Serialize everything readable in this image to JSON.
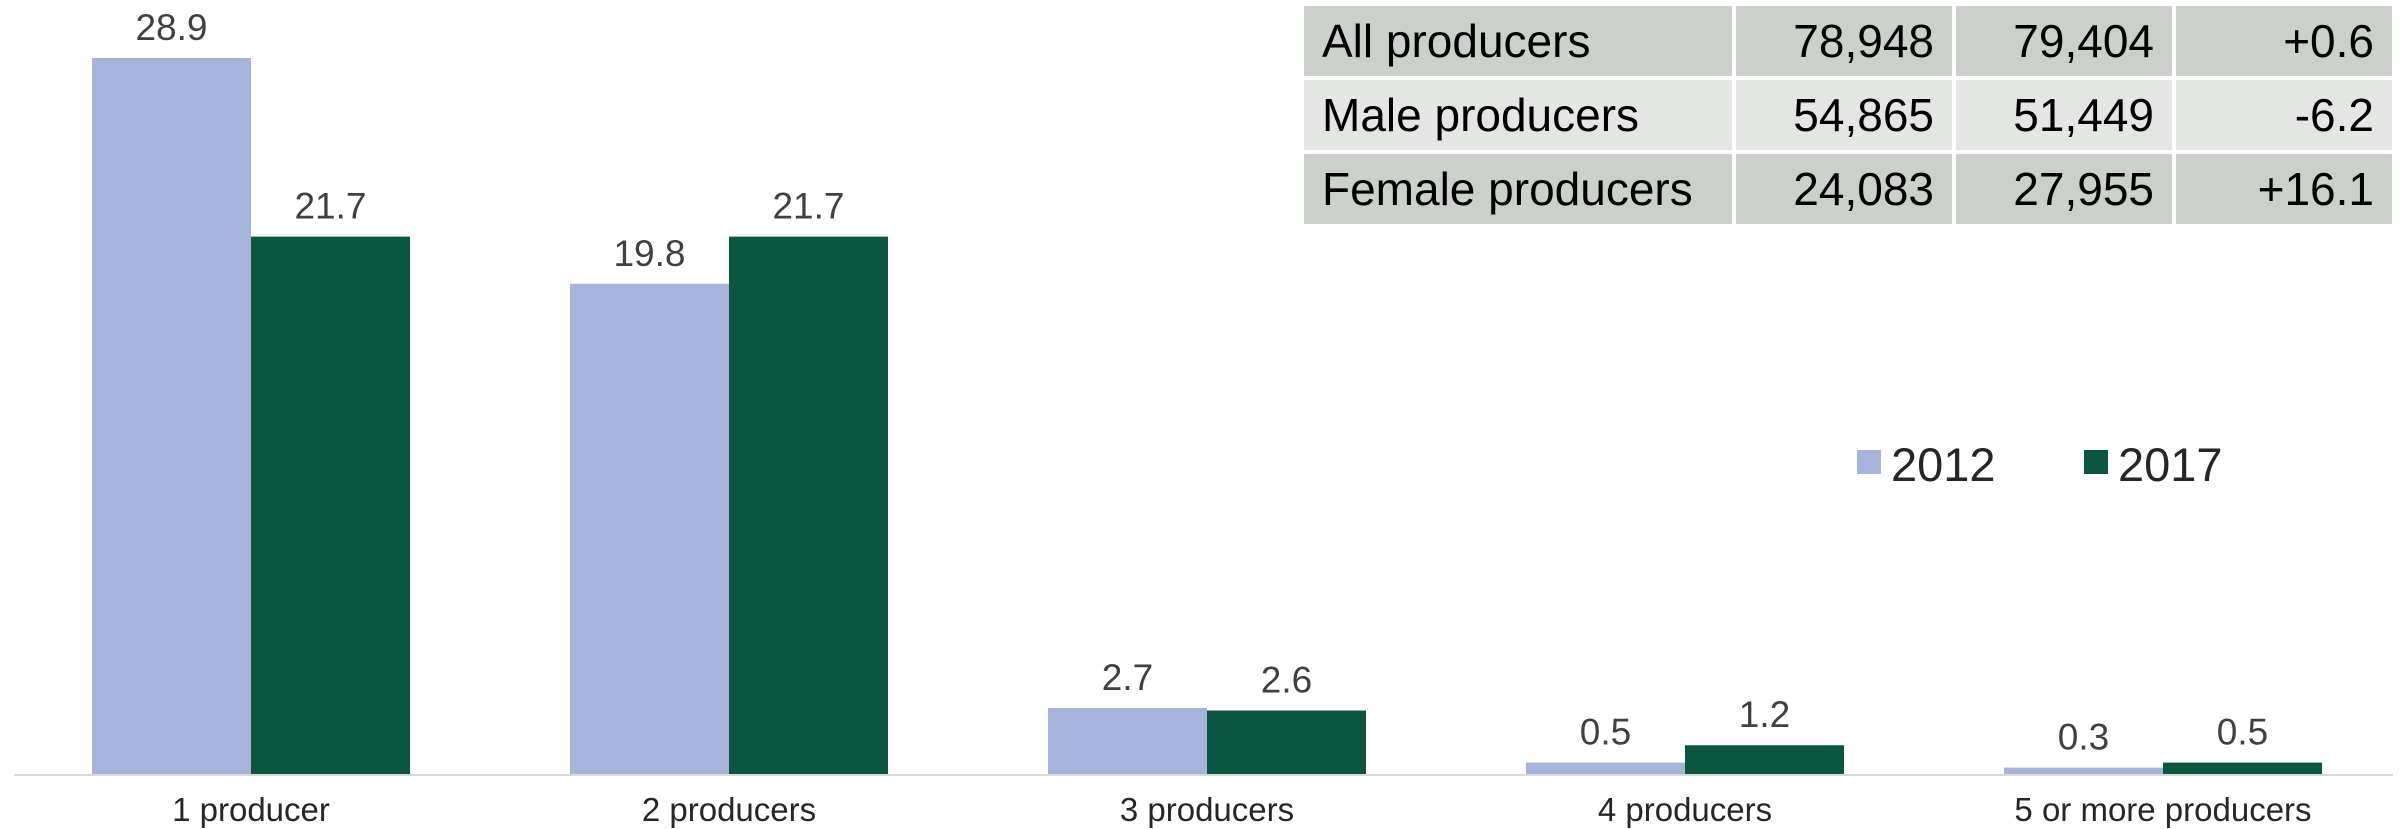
{
  "chart_data": {
    "type": "bar",
    "categories": [
      "1 producer",
      "2 producers",
      "3 producers",
      "4 producers",
      "5 or more producers"
    ],
    "series": [
      {
        "name": "2012",
        "values": [
          28.9,
          19.8,
          2.7,
          0.5,
          0.3
        ],
        "color": "#a6b4db"
      },
      {
        "name": "2017",
        "values": [
          21.7,
          21.7,
          2.6,
          1.2,
          0.5
        ],
        "color": "#0b5541"
      }
    ],
    "data_labels": [
      [
        "28.9",
        "19.8",
        "2.7",
        "0.5",
        "0.3"
      ],
      [
        "21.7",
        "21.7",
        "2.6",
        "1.2",
        "0.5"
      ]
    ],
    "ylim": [
      0,
      31
    ],
    "xlabel": "",
    "ylabel": "",
    "legend": "right",
    "grid": false
  },
  "summary_table": {
    "rows": [
      {
        "label": "All producers",
        "v2012": "78,948",
        "v2017": "79,404",
        "change": "+0.6"
      },
      {
        "label": "Male producers",
        "v2012": "54,865",
        "v2017": "51,449",
        "change": "-6.2"
      },
      {
        "label": "Female producers",
        "v2012": "24,083",
        "v2017": "27,955",
        "change": "+16.1"
      }
    ]
  }
}
